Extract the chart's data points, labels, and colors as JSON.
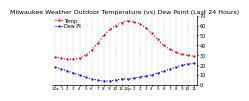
{
  "title": "Milwaukee Weather Outdoor Temperature (vs) Dew Point (Last 24 Hours)",
  "title_fontsize": 4.5,
  "background_color": "#ffffff",
  "plot_bg_color": "#ffffff",
  "grid_color": "#aaaaaa",
  "temp_color": "#cc0000",
  "dew_color": "#0000cc",
  "temp_values": [
    28,
    27,
    26,
    26,
    27,
    30,
    35,
    42,
    50,
    56,
    60,
    63,
    65,
    64,
    62,
    58,
    52,
    46,
    40,
    36,
    33,
    31,
    30,
    29
  ],
  "dew_values": [
    18,
    16,
    14,
    12,
    10,
    8,
    6,
    5,
    4,
    4,
    5,
    6,
    6,
    7,
    8,
    9,
    10,
    12,
    14,
    16,
    18,
    20,
    21,
    22
  ],
  "x_labels": [
    "12a",
    "1",
    "2",
    "3",
    "4",
    "5",
    "6",
    "7",
    "8",
    "9",
    "10",
    "11",
    "12p",
    "1",
    "2",
    "3",
    "4",
    "5",
    "6",
    "7",
    "8",
    "9",
    "10",
    "11"
  ],
  "ylim": [
    0,
    70
  ],
  "yticks": [
    0,
    10,
    20,
    30,
    40,
    50,
    60,
    70
  ],
  "ytick_fontsize": 3.5,
  "xtick_fontsize": 3.0,
  "legend_fontsize": 3.5,
  "line_width": 0.8,
  "marker_size": 1.2
}
